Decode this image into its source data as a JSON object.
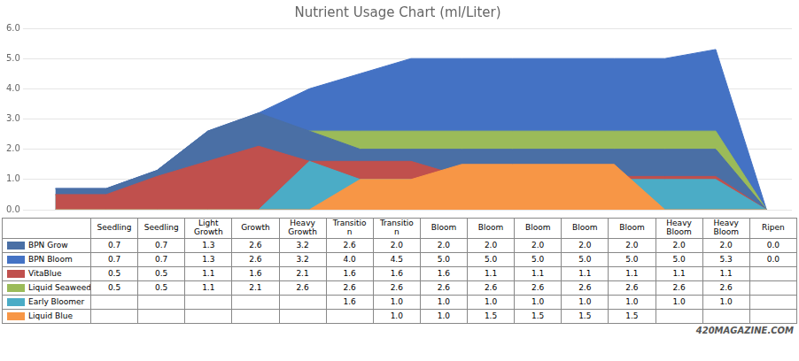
{
  "chart_data": {
    "type": "area",
    "title": "Nutrient Usage Chart (ml/Liter)",
    "categories": [
      "Seedling",
      "Seedling",
      "Light\nGrowth",
      "Growth",
      "Heavy\nGrowth",
      "Transitio\nn",
      "Transitio\nn",
      "Bloom",
      "Bloom",
      "Bloom",
      "Bloom",
      "Bloom",
      "Heavy\nBloom",
      "Heavy\nBloom",
      "Ripen"
    ],
    "series": [
      {
        "name": "BPN Grow",
        "color": "#4a6fa5",
        "values": [
          0.7,
          0.7,
          1.3,
          2.6,
          3.2,
          2.6,
          2.0,
          2.0,
          2.0,
          2.0,
          2.0,
          2.0,
          2.0,
          2.0,
          0.0
        ],
        "value_labels": [
          "0.7",
          "0.7",
          "1.3",
          "2.6",
          "3.2",
          "2.6",
          "2.0",
          "2.0",
          "2.0",
          "2.0",
          "2.0",
          "2.0",
          "2.0",
          "2.0",
          "0.0"
        ]
      },
      {
        "name": "BPN Bloom",
        "color": "#4472c4",
        "values": [
          0.7,
          0.7,
          1.3,
          2.6,
          3.2,
          4.0,
          4.5,
          5.0,
          5.0,
          5.0,
          5.0,
          5.0,
          5.0,
          5.3,
          0.0
        ],
        "value_labels": [
          "0.7",
          "0.7",
          "1.3",
          "2.6",
          "3.2",
          "4.0",
          "4.5",
          "5.0",
          "5.0",
          "5.0",
          "5.0",
          "5.0",
          "5.0",
          "5.3",
          "0.0"
        ]
      },
      {
        "name": "VitaBlue",
        "color": "#c0504d",
        "values": [
          0.5,
          0.5,
          1.1,
          1.6,
          2.1,
          1.6,
          1.6,
          1.6,
          1.1,
          1.1,
          1.1,
          1.1,
          1.1,
          1.1,
          0.0
        ],
        "value_labels": [
          "0.5",
          "0.5",
          "1.1",
          "1.6",
          "2.1",
          "1.6",
          "1.6",
          "1.6",
          "1.1",
          "1.1",
          "1.1",
          "1.1",
          "1.1",
          "1.1",
          null
        ]
      },
      {
        "name": "Liquid Seaweed",
        "color": "#9bbb59",
        "values": [
          0.5,
          0.5,
          1.1,
          2.1,
          2.6,
          2.6,
          2.6,
          2.6,
          2.6,
          2.6,
          2.6,
          2.6,
          2.6,
          2.6,
          0.0
        ],
        "value_labels": [
          "0.5",
          "0.5",
          "1.1",
          "2.1",
          "2.6",
          "2.6",
          "2.6",
          "2.6",
          "2.6",
          "2.6",
          "2.6",
          "2.6",
          "2.6",
          "2.6",
          null
        ]
      },
      {
        "name": "Early Bloomer",
        "color": "#4bacc6",
        "values": [
          0.0,
          0.0,
          0.0,
          0.0,
          0.0,
          1.6,
          1.0,
          1.0,
          1.0,
          1.0,
          1.0,
          1.0,
          1.0,
          1.0,
          0.0
        ],
        "value_labels": [
          null,
          null,
          null,
          null,
          null,
          "1.6",
          "1.0",
          "1.0",
          "1.0",
          "1.0",
          "1.0",
          "1.0",
          "1.0",
          "1.0",
          null
        ]
      },
      {
        "name": "Liquid Blue",
        "color": "#f79646",
        "values": [
          0.0,
          0.0,
          0.0,
          0.0,
          0.0,
          0.0,
          1.0,
          1.0,
          1.5,
          1.5,
          1.5,
          1.5,
          0.0,
          0.0,
          0.0
        ],
        "value_labels": [
          null,
          null,
          null,
          null,
          null,
          null,
          "1.0",
          "1.0",
          "1.5",
          "1.5",
          "1.5",
          "1.5",
          null,
          null,
          null
        ]
      }
    ],
    "ylim": [
      0,
      6
    ],
    "yticks": [
      {
        "value": 0,
        "label": "0.0"
      },
      {
        "value": 1,
        "label": "1.0"
      },
      {
        "value": 2,
        "label": "2.0"
      },
      {
        "value": 3,
        "label": "3.0"
      },
      {
        "value": 4,
        "label": "4.0"
      },
      {
        "value": 5,
        "label": "5.0"
      },
      {
        "value": 6,
        "label": "6.0"
      }
    ],
    "grid": true,
    "tick_labels": "y",
    "annotations": [
      "420MAGAZINE.COM"
    ]
  }
}
